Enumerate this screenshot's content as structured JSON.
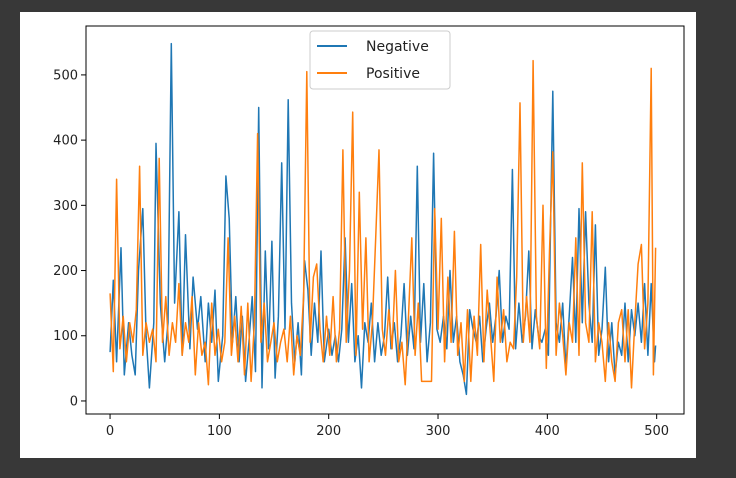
{
  "chart_data": {
    "type": "line",
    "title": "",
    "xlabel": "",
    "ylabel": "",
    "xlim": [
      -22,
      525
    ],
    "ylim": [
      -20,
      575
    ],
    "xticks": [
      0,
      100,
      200,
      300,
      400,
      500
    ],
    "yticks": [
      0,
      100,
      200,
      300,
      400,
      500
    ],
    "xtick_labels": [
      "0",
      "100",
      "200",
      "300",
      "400",
      "500"
    ],
    "ytick_labels": [
      "0",
      "100",
      "200",
      "300",
      "400",
      "500"
    ],
    "legend_position": "upper-center",
    "grid": false,
    "series": [
      {
        "name": "Negative",
        "color": "#1f77b4",
        "points": [
          [
            0,
            75
          ],
          [
            3,
            185
          ],
          [
            6,
            60
          ],
          [
            10,
            235
          ],
          [
            13,
            40
          ],
          [
            17,
            120
          ],
          [
            20,
            70
          ],
          [
            23,
            40
          ],
          [
            26,
            200
          ],
          [
            30,
            295
          ],
          [
            33,
            100
          ],
          [
            36,
            20
          ],
          [
            40,
            120
          ],
          [
            42,
            395
          ],
          [
            46,
            150
          ],
          [
            50,
            60
          ],
          [
            53,
            120
          ],
          [
            56,
            548
          ],
          [
            59,
            150
          ],
          [
            63,
            290
          ],
          [
            66,
            70
          ],
          [
            69,
            255
          ],
          [
            73,
            80
          ],
          [
            76,
            190
          ],
          [
            80,
            110
          ],
          [
            83,
            160
          ],
          [
            87,
            60
          ],
          [
            90,
            150
          ],
          [
            93,
            90
          ],
          [
            96,
            170
          ],
          [
            99,
            30
          ],
          [
            103,
            100
          ],
          [
            106,
            345
          ],
          [
            109,
            280
          ],
          [
            112,
            90
          ],
          [
            115,
            160
          ],
          [
            118,
            60
          ],
          [
            121,
            130
          ],
          [
            124,
            30
          ],
          [
            127,
            90
          ],
          [
            130,
            160
          ],
          [
            133,
            45
          ],
          [
            136,
            450
          ],
          [
            139,
            20
          ],
          [
            142,
            230
          ],
          [
            145,
            80
          ],
          [
            148,
            245
          ],
          [
            151,
            35
          ],
          [
            154,
            130
          ],
          [
            157,
            365
          ],
          [
            160,
            110
          ],
          [
            163,
            462
          ],
          [
            166,
            150
          ],
          [
            169,
            60
          ],
          [
            172,
            120
          ],
          [
            175,
            40
          ],
          [
            178,
            215
          ],
          [
            181,
            170
          ],
          [
            184,
            70
          ],
          [
            187,
            150
          ],
          [
            190,
            90
          ],
          [
            193,
            230
          ],
          [
            196,
            60
          ],
          [
            200,
            110
          ],
          [
            203,
            70
          ],
          [
            206,
            100
          ],
          [
            209,
            60
          ],
          [
            212,
            110
          ],
          [
            215,
            250
          ],
          [
            218,
            90
          ],
          [
            221,
            180
          ],
          [
            224,
            60
          ],
          [
            227,
            100
          ],
          [
            230,
            20
          ],
          [
            233,
            120
          ],
          [
            236,
            90
          ],
          [
            239,
            150
          ],
          [
            242,
            60
          ],
          [
            245,
            120
          ],
          [
            248,
            70
          ],
          [
            251,
            100
          ],
          [
            254,
            190
          ],
          [
            257,
            80
          ],
          [
            260,
            120
          ],
          [
            263,
            60
          ],
          [
            266,
            100
          ],
          [
            269,
            180
          ],
          [
            272,
            70
          ],
          [
            275,
            130
          ],
          [
            278,
            80
          ],
          [
            281,
            360
          ],
          [
            284,
            90
          ],
          [
            287,
            180
          ],
          [
            290,
            60
          ],
          [
            293,
            120
          ],
          [
            296,
            380
          ],
          [
            299,
            110
          ],
          [
            302,
            90
          ],
          [
            305,
            130
          ],
          [
            308,
            80
          ],
          [
            311,
            200
          ],
          [
            314,
            90
          ],
          [
            317,
            130
          ],
          [
            320,
            60
          ],
          [
            323,
            40
          ],
          [
            326,
            10
          ],
          [
            329,
            140
          ],
          [
            332,
            110
          ],
          [
            335,
            90
          ],
          [
            338,
            130
          ],
          [
            341,
            60
          ],
          [
            344,
            110
          ],
          [
            347,
            150
          ],
          [
            350,
            90
          ],
          [
            353,
            130
          ],
          [
            356,
            200
          ],
          [
            359,
            90
          ],
          [
            362,
            130
          ],
          [
            365,
            110
          ],
          [
            368,
            355
          ],
          [
            371,
            80
          ],
          [
            374,
            150
          ],
          [
            377,
            90
          ],
          [
            380,
            130
          ],
          [
            383,
            230
          ],
          [
            386,
            80
          ],
          [
            389,
            140
          ],
          [
            392,
            100
          ],
          [
            395,
            90
          ],
          [
            398,
            110
          ],
          [
            401,
            70
          ],
          [
            405,
            475
          ],
          [
            408,
            120
          ],
          [
            411,
            90
          ],
          [
            414,
            150
          ],
          [
            417,
            50
          ],
          [
            420,
            130
          ],
          [
            423,
            220
          ],
          [
            426,
            90
          ],
          [
            429,
            295
          ],
          [
            432,
            120
          ],
          [
            435,
            290
          ],
          [
            438,
            150
          ],
          [
            441,
            90
          ],
          [
            444,
            270
          ],
          [
            447,
            70
          ],
          [
            450,
            110
          ],
          [
            453,
            205
          ],
          [
            456,
            60
          ],
          [
            459,
            120
          ],
          [
            462,
            40
          ],
          [
            465,
            90
          ],
          [
            468,
            70
          ],
          [
            471,
            150
          ],
          [
            474,
            60
          ],
          [
            477,
            140
          ],
          [
            480,
            100
          ],
          [
            483,
            150
          ],
          [
            486,
            90
          ],
          [
            489,
            180
          ],
          [
            492,
            70
          ],
          [
            495,
            180
          ],
          [
            498,
            60
          ],
          [
            499,
            85
          ]
        ]
      },
      {
        "name": "Positive",
        "color": "#ff7f0e",
        "points": [
          [
            0,
            165
          ],
          [
            3,
            45
          ],
          [
            6,
            340
          ],
          [
            9,
            80
          ],
          [
            12,
            130
          ],
          [
            15,
            60
          ],
          [
            18,
            120
          ],
          [
            21,
            90
          ],
          [
            24,
            140
          ],
          [
            27,
            360
          ],
          [
            30,
            70
          ],
          [
            33,
            120
          ],
          [
            36,
            90
          ],
          [
            39,
            110
          ],
          [
            42,
            60
          ],
          [
            45,
            372
          ],
          [
            48,
            90
          ],
          [
            51,
            160
          ],
          [
            54,
            70
          ],
          [
            57,
            120
          ],
          [
            60,
            90
          ],
          [
            63,
            180
          ],
          [
            66,
            70
          ],
          [
            69,
            120
          ],
          [
            72,
            90
          ],
          [
            75,
            160
          ],
          [
            78,
            40
          ],
          [
            81,
            120
          ],
          [
            84,
            70
          ],
          [
            87,
            90
          ],
          [
            90,
            25
          ],
          [
            93,
            150
          ],
          [
            96,
            70
          ],
          [
            99,
            110
          ],
          [
            102,
            60
          ],
          [
            105,
            90
          ],
          [
            108,
            250
          ],
          [
            111,
            70
          ],
          [
            114,
            130
          ],
          [
            117,
            60
          ],
          [
            120,
            145
          ],
          [
            123,
            40
          ],
          [
            126,
            150
          ],
          [
            129,
            30
          ],
          [
            132,
            120
          ],
          [
            135,
            410
          ],
          [
            138,
            90
          ],
          [
            141,
            150
          ],
          [
            144,
            60
          ],
          [
            147,
            90
          ],
          [
            150,
            120
          ],
          [
            153,
            60
          ],
          [
            156,
            90
          ],
          [
            159,
            110
          ],
          [
            162,
            60
          ],
          [
            165,
            130
          ],
          [
            168,
            40
          ],
          [
            171,
            100
          ],
          [
            174,
            70
          ],
          [
            177,
            160
          ],
          [
            180,
            505
          ],
          [
            183,
            90
          ],
          [
            186,
            190
          ],
          [
            189,
            210
          ],
          [
            192,
            110
          ],
          [
            195,
            60
          ],
          [
            198,
            130
          ],
          [
            201,
            70
          ],
          [
            204,
            160
          ],
          [
            207,
            60
          ],
          [
            210,
            110
          ],
          [
            213,
            385
          ],
          [
            216,
            90
          ],
          [
            219,
            200
          ],
          [
            222,
            443
          ],
          [
            225,
            70
          ],
          [
            228,
            320
          ],
          [
            231,
            110
          ],
          [
            234,
            250
          ],
          [
            237,
            60
          ],
          [
            240,
            120
          ],
          [
            243,
            250
          ],
          [
            246,
            385
          ],
          [
            249,
            110
          ],
          [
            252,
            70
          ],
          [
            255,
            140
          ],
          [
            258,
            80
          ],
          [
            261,
            200
          ],
          [
            264,
            60
          ],
          [
            267,
            90
          ],
          [
            270,
            25
          ],
          [
            273,
            130
          ],
          [
            276,
            250
          ],
          [
            279,
            70
          ],
          [
            282,
            150
          ],
          [
            285,
            30
          ],
          [
            288,
            30
          ],
          [
            291,
            30
          ],
          [
            294,
            30
          ],
          [
            297,
            295
          ],
          [
            300,
            110
          ],
          [
            303,
            280
          ],
          [
            306,
            60
          ],
          [
            309,
            190
          ],
          [
            312,
            90
          ],
          [
            315,
            260
          ],
          [
            318,
            70
          ],
          [
            321,
            120
          ],
          [
            324,
            30
          ],
          [
            327,
            140
          ],
          [
            330,
            30
          ],
          [
            333,
            130
          ],
          [
            336,
            70
          ],
          [
            339,
            240
          ],
          [
            342,
            60
          ],
          [
            345,
            170
          ],
          [
            348,
            100
          ],
          [
            351,
            30
          ],
          [
            354,
            190
          ],
          [
            357,
            90
          ],
          [
            360,
            140
          ],
          [
            363,
            60
          ],
          [
            366,
            90
          ],
          [
            369,
            80
          ],
          [
            372,
            190
          ],
          [
            375,
            457
          ],
          [
            378,
            90
          ],
          [
            381,
            160
          ],
          [
            384,
            90
          ],
          [
            387,
            522
          ],
          [
            390,
            130
          ],
          [
            393,
            80
          ],
          [
            396,
            300
          ],
          [
            399,
            50
          ],
          [
            402,
            230
          ],
          [
            405,
            382
          ],
          [
            408,
            70
          ],
          [
            411,
            150
          ],
          [
            414,
            100
          ],
          [
            417,
            40
          ],
          [
            420,
            120
          ],
          [
            423,
            90
          ],
          [
            426,
            250
          ],
          [
            429,
            70
          ],
          [
            432,
            365
          ],
          [
            435,
            120
          ],
          [
            438,
            90
          ],
          [
            441,
            290
          ],
          [
            444,
            60
          ],
          [
            447,
            120
          ],
          [
            450,
            90
          ],
          [
            453,
            30
          ],
          [
            456,
            120
          ],
          [
            459,
            60
          ],
          [
            462,
            30
          ],
          [
            465,
            120
          ],
          [
            468,
            140
          ],
          [
            471,
            60
          ],
          [
            474,
            140
          ],
          [
            477,
            20
          ],
          [
            480,
            120
          ],
          [
            483,
            210
          ],
          [
            486,
            240
          ],
          [
            489,
            80
          ],
          [
            492,
            150
          ],
          [
            495,
            510
          ],
          [
            497,
            40
          ],
          [
            499,
            235
          ]
        ]
      }
    ]
  }
}
